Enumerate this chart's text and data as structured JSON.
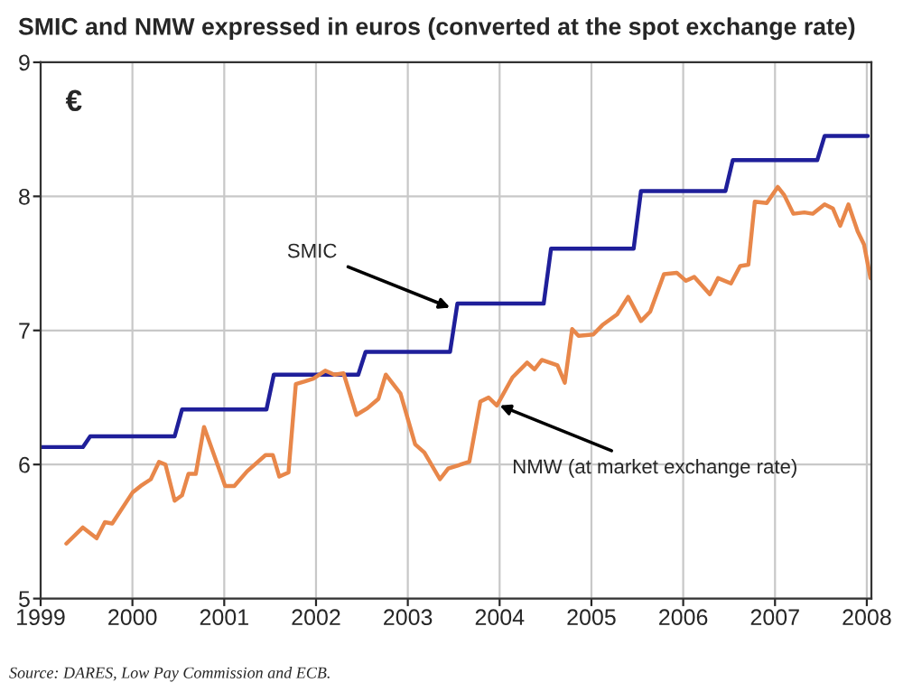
{
  "chart_data": {
    "type": "line",
    "title": "SMIC and NMW expressed in euros (converted at the spot exchange rate)",
    "ylabel": "€",
    "series": [
      {
        "color": "#1f1f9a",
        "x": [
          1999.0,
          1999.46,
          1999.54,
          2000.46,
          2000.54,
          2001.46,
          2001.54,
          2002.46,
          2002.54,
          2003.46,
          2003.54,
          2004.48,
          2004.56,
          2005.46,
          2005.54,
          2006.46,
          2006.54,
          2007.46,
          2007.54,
          2008.01
        ],
        "values": [
          6.13,
          6.13,
          6.21,
          6.21,
          6.41,
          6.41,
          6.67,
          6.67,
          6.84,
          6.84,
          7.2,
          7.2,
          7.61,
          7.61,
          8.04,
          8.04,
          8.27,
          8.27,
          8.45,
          8.45
        ]
      },
      {
        "color": "#e8874a",
        "x": [
          1999.28,
          1999.46,
          1999.61,
          1999.7,
          1999.78,
          2000.0,
          2000.09,
          2000.2,
          2000.29,
          2000.36,
          2000.46,
          2000.54,
          2000.61,
          2000.69,
          2000.78,
          2001.01,
          2001.11,
          2001.25,
          2001.45,
          2001.53,
          2001.6,
          2001.7,
          2001.78,
          2001.88,
          2001.97,
          2002.1,
          2002.2,
          2002.3,
          2002.44,
          2002.56,
          2002.68,
          2002.76,
          2002.92,
          2003.08,
          2003.18,
          2003.35,
          2003.44,
          2003.67,
          2003.79,
          2003.88,
          2003.97,
          2004.14,
          2004.3,
          2004.38,
          2004.46,
          2004.63,
          2004.71,
          2004.79,
          2004.86,
          2005.02,
          2005.12,
          2005.28,
          2005.4,
          2005.54,
          2005.64,
          2005.79,
          2005.93,
          2006.03,
          2006.12,
          2006.29,
          2006.38,
          2006.52,
          2006.62,
          2006.71,
          2006.78,
          2006.91,
          2007.03,
          2007.1,
          2007.2,
          2007.32,
          2007.41,
          2007.54,
          2007.63,
          2007.71,
          2007.8,
          2007.9,
          2007.97,
          2008.04
        ],
        "values": [
          5.41,
          5.53,
          5.45,
          5.57,
          5.56,
          5.79,
          5.84,
          5.89,
          6.02,
          6.0,
          5.73,
          5.77,
          5.93,
          5.93,
          6.28,
          5.84,
          5.84,
          5.95,
          6.07,
          6.07,
          5.91,
          5.94,
          6.6,
          6.62,
          6.64,
          6.7,
          6.67,
          6.68,
          6.37,
          6.42,
          6.49,
          6.67,
          6.53,
          6.15,
          6.09,
          5.89,
          5.97,
          6.02,
          6.47,
          6.5,
          6.44,
          6.65,
          6.76,
          6.71,
          6.78,
          6.74,
          6.61,
          7.01,
          6.96,
          6.97,
          7.04,
          7.12,
          7.25,
          7.07,
          7.14,
          7.42,
          7.43,
          7.37,
          7.4,
          7.27,
          7.39,
          7.35,
          7.48,
          7.49,
          7.96,
          7.95,
          8.07,
          8.01,
          7.87,
          7.88,
          7.87,
          7.94,
          7.91,
          7.78,
          7.94,
          7.74,
          7.64,
          7.39
        ]
      }
    ],
    "annotations": [
      {
        "text": "SMIC",
        "x": 2003.46,
        "y": 7.17
      },
      {
        "text": "NMW (at market exchange rate)",
        "x": 2004.0,
        "y": 6.44
      },
      "Source: DARES, Low Pay Commission and ECB."
    ],
    "xlim": [
      1999,
      2008.05
    ],
    "xticks": [
      1999,
      2000,
      2001,
      2002,
      2003,
      2004,
      2005,
      2006,
      2007,
      2008
    ],
    "ylim": [
      5,
      9
    ],
    "yticks": [
      5,
      6,
      7,
      8,
      9
    ],
    "grid": true,
    "legend": false
  }
}
